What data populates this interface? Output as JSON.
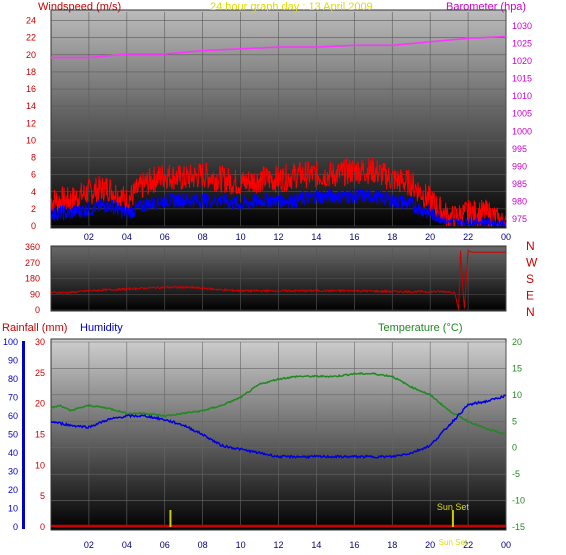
{
  "page": {
    "title": "24 hour graph day : 13 April 2009"
  },
  "chart_data": [
    {
      "id": "wind_pressure",
      "type": "line",
      "left_axis_label": "Windspeed (m/s)",
      "right_axis_label": "Barometer (hpa)",
      "left_ylim": [
        0,
        25
      ],
      "left_ticks": [
        0,
        2,
        4,
        6,
        8,
        10,
        12,
        14,
        16,
        18,
        20,
        22,
        24
      ],
      "right_ylim": [
        973,
        1034
      ],
      "right_ticks": [
        975,
        980,
        985,
        990,
        995,
        1000,
        1005,
        1010,
        1015,
        1020,
        1025,
        1030
      ],
      "x_ticks": [
        "02",
        "04",
        "06",
        "08",
        "10",
        "12",
        "14",
        "16",
        "18",
        "20",
        "22",
        "00"
      ],
      "x_range_hours": [
        0,
        24
      ],
      "series": [
        {
          "kind": "pressure",
          "color": "#ff33ff",
          "axis": "right",
          "x": [
            0,
            2,
            4,
            6,
            8,
            10,
            12,
            14,
            16,
            18,
            20,
            22,
            24
          ],
          "y": [
            1021,
            1021,
            1022,
            1022,
            1023,
            1023.5,
            1024,
            1024,
            1024.5,
            1024.5,
            1025.5,
            1026.5,
            1027
          ]
        },
        {
          "kind": "gust",
          "color": "#ff0000",
          "axis": "left",
          "x": [
            0,
            1,
            2,
            3,
            4,
            5,
            6,
            7,
            8,
            9,
            10,
            11,
            12,
            13,
            14,
            15,
            16,
            17,
            18,
            19,
            20,
            21,
            22,
            23,
            24
          ],
          "y": [
            3,
            3,
            4,
            4.5,
            3,
            5,
            6,
            5.5,
            6,
            5.5,
            5,
            5.5,
            5.5,
            6,
            6,
            6,
            6.5,
            6.5,
            5.5,
            5,
            3,
            1,
            1.5,
            1.5,
            0.5
          ]
        },
        {
          "kind": "average",
          "color": "#0000ff",
          "axis": "left",
          "x": [
            0,
            1,
            2,
            3,
            4,
            5,
            6,
            7,
            8,
            9,
            10,
            11,
            12,
            13,
            14,
            15,
            16,
            17,
            18,
            19,
            20,
            21,
            22,
            23,
            24
          ],
          "y": [
            1.5,
            1.5,
            2,
            2.5,
            1.5,
            2.5,
            3,
            3,
            3,
            3,
            2.5,
            3,
            3,
            3,
            3.5,
            3.5,
            3.5,
            3.5,
            3,
            2.5,
            1.5,
            0.5,
            0.5,
            0.5,
            0.3
          ]
        }
      ]
    },
    {
      "id": "wind_direction",
      "type": "line",
      "left_ylim": [
        0,
        360
      ],
      "left_ticks": [
        0,
        90,
        180,
        270,
        360
      ],
      "right_labels": [
        "N",
        "W",
        "S",
        "E",
        "N"
      ],
      "x_range_hours": [
        0,
        24
      ],
      "series": [
        {
          "kind": "direction",
          "color": "#cc0000",
          "x": [
            0,
            1,
            2,
            3,
            4,
            5,
            6,
            7,
            8,
            9,
            10,
            11,
            12,
            13,
            14,
            15,
            16,
            17,
            18,
            19,
            20,
            21,
            21.3,
            21.5,
            21.6,
            21.8,
            22,
            22.2,
            24
          ],
          "y": [
            100,
            100,
            110,
            115,
            120,
            125,
            130,
            130,
            125,
            115,
            110,
            110,
            110,
            110,
            110,
            110,
            110,
            108,
            105,
            105,
            105,
            105,
            100,
            0,
            340,
            0,
            340,
            330,
            330
          ]
        }
      ]
    },
    {
      "id": "temp_humidity_rain",
      "type": "line",
      "rain_axis_label": "Rainfall (mm)",
      "humidity_axis_label": "Humidity",
      "temperature_axis_label": "Temperature (°C)",
      "humidity_ylim": [
        0,
        100
      ],
      "humidity_ticks": [
        0,
        10,
        20,
        30,
        40,
        50,
        60,
        70,
        80,
        90,
        100
      ],
      "rain_ylim": [
        0,
        30
      ],
      "rain_ticks": [
        0,
        5,
        10,
        15,
        20,
        25,
        30
      ],
      "temp_ylim": [
        -15,
        20
      ],
      "temp_ticks": [
        -15,
        -10,
        -5,
        0,
        5,
        10,
        15,
        20
      ],
      "x_ticks": [
        "02",
        "04",
        "06",
        "08",
        "10",
        "12",
        "14",
        "16",
        "18",
        "20",
        "22",
        "00"
      ],
      "x_range_hours": [
        0,
        24
      ],
      "annotations": [
        "Sun Set",
        "Sun Set"
      ],
      "series": [
        {
          "kind": "temperature",
          "color": "#228822",
          "x": [
            0,
            0.5,
            1,
            2,
            3,
            4,
            5,
            6,
            7,
            8,
            9,
            10,
            11,
            12,
            13,
            14,
            15,
            16,
            17,
            18,
            19,
            20,
            21,
            22,
            23,
            24
          ],
          "y": [
            7.5,
            8,
            7,
            8,
            7.5,
            6.5,
            6.5,
            6,
            6.5,
            7,
            8,
            9.5,
            12,
            13,
            13.5,
            13.5,
            13.5,
            14,
            14,
            13.5,
            11.5,
            10,
            7,
            5,
            3.5,
            2.5
          ]
        },
        {
          "kind": "humidity",
          "color": "#0000dd",
          "x": [
            0,
            1,
            2,
            3,
            4,
            5,
            6,
            7,
            8,
            9,
            10,
            11,
            12,
            13,
            14,
            15,
            16,
            17,
            18,
            19,
            20,
            21,
            22,
            23,
            24
          ],
          "y": [
            57,
            55,
            54,
            58,
            60,
            60,
            58,
            55,
            50,
            44,
            42,
            40,
            38,
            38,
            38,
            38,
            38,
            38,
            38,
            40,
            44,
            55,
            66,
            68,
            71
          ]
        },
        {
          "kind": "rainfall",
          "color": "#cc0000",
          "x": [
            0,
            24
          ],
          "y": [
            0,
            0
          ]
        }
      ],
      "markers": [
        {
          "kind": "sunrise",
          "x": 6.3,
          "color": "#cccc00"
        },
        {
          "kind": "sunset",
          "x": 21.2,
          "color": "#cccc00"
        }
      ]
    }
  ]
}
